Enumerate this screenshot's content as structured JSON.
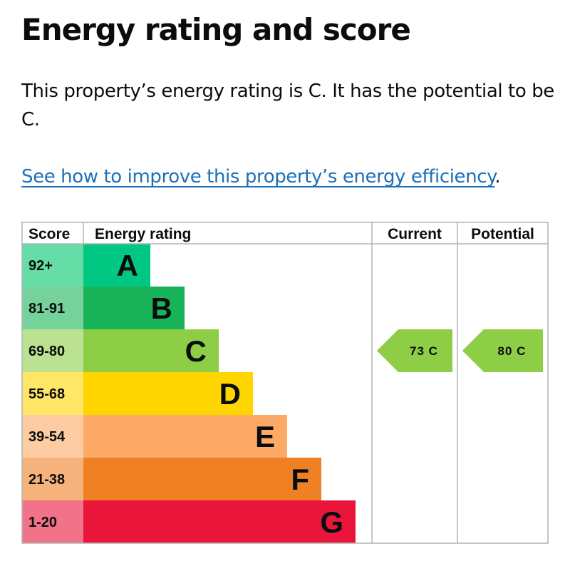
{
  "page": {
    "title": "Energy rating and score",
    "summary": "This property’s energy rating is C. It has the potential to be C.",
    "link_text": "See how to improve this property’s energy efficiency",
    "link_suffix": "."
  },
  "chart_data": {
    "type": "bar",
    "headers": {
      "score": "Score",
      "rating": "Energy rating",
      "current": "Current",
      "potential": "Potential"
    },
    "bands": [
      {
        "letter": "A",
        "range": "92+",
        "color": "#00c781",
        "score_bg": "#66dda7"
      },
      {
        "letter": "B",
        "range": "81-91",
        "color": "#19b459",
        "score_bg": "#75d29b"
      },
      {
        "letter": "C",
        "range": "69-80",
        "color": "#8dce46",
        "score_bg": "#bbe290"
      },
      {
        "letter": "D",
        "range": "55-68",
        "color": "#ffd500",
        "score_bg": "#ffe666"
      },
      {
        "letter": "E",
        "range": "39-54",
        "color": "#fcaa65",
        "score_bg": "#fdcca3"
      },
      {
        "letter": "F",
        "range": "21-38",
        "color": "#ef8023",
        "score_bg": "#f5b37b"
      },
      {
        "letter": "G",
        "range": "1-20",
        "color": "#e9153b",
        "score_bg": "#f27389"
      }
    ],
    "current": {
      "score": 73,
      "band": "C",
      "label": "73 C",
      "color": "#8dce46"
    },
    "potential": {
      "score": 80,
      "band": "C",
      "label": "80 C",
      "color": "#8dce46"
    },
    "border_color": "#b1b4b6"
  }
}
